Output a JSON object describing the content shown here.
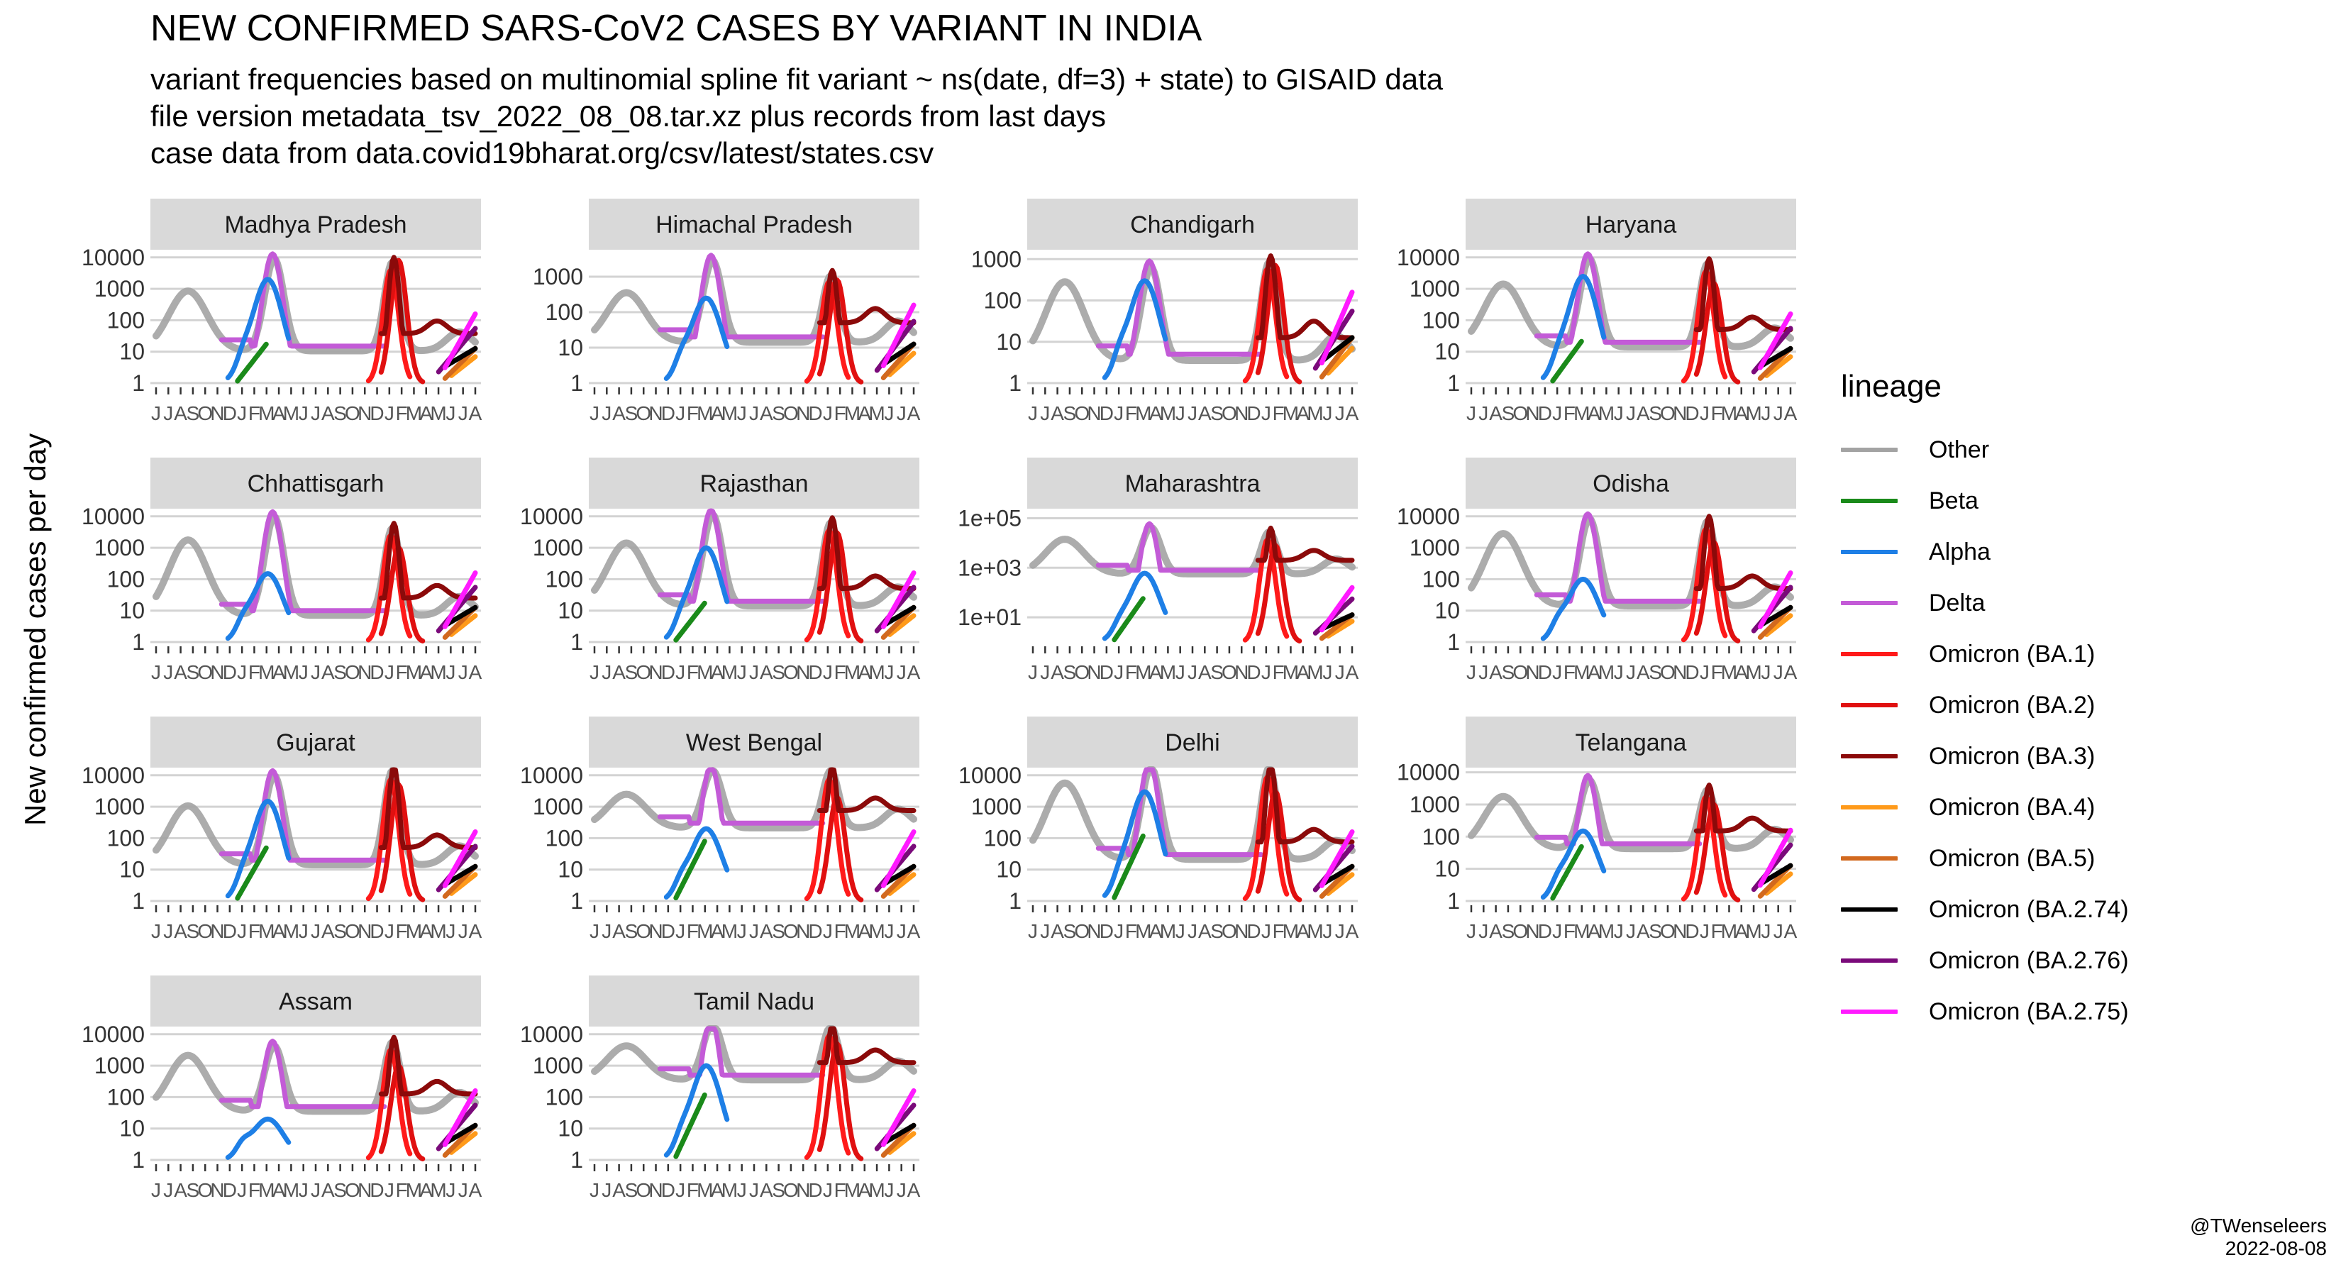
{
  "chart_data": {
    "type": "line",
    "title": "NEW CONFIRMED SARS-CoV2 CASES BY VARIANT IN INDIA",
    "subtitle": [
      "variant frequencies based on multinomial spline fit variant ~ ns(date, df=3) + state) to GISAID data",
      "file version metadata_tsv_2022_08_08.tar.xz plus records from last days",
      "case data from data.covid19bharat.org/csv/latest/states.csv"
    ],
    "ylabel": "New confirmed cases per day",
    "y_scale": "log10",
    "x_tick_labels": [
      "J",
      "J",
      "A",
      "S",
      "O",
      "N",
      "D",
      "J",
      "F",
      "M",
      "A",
      "M",
      "J",
      "J",
      "A",
      "S",
      "O",
      "N",
      "D",
      "J",
      "F",
      "M",
      "A",
      "M",
      "J",
      "J",
      "A"
    ],
    "legend": {
      "title": "lineage",
      "placement": "right",
      "entries": [
        {
          "name": "Other",
          "color": "#a3a3a3"
        },
        {
          "name": "Beta",
          "color": "#1a8a1a"
        },
        {
          "name": "Alpha",
          "color": "#1e7fe6"
        },
        {
          "name": "Delta",
          "color": "#c35bd7"
        },
        {
          "name": "Omicron (BA.1)",
          "color": "#ff1a1a"
        },
        {
          "name": "Omicron (BA.2)",
          "color": "#e01010"
        },
        {
          "name": "Omicron (BA.3)",
          "color": "#8b0a0a"
        },
        {
          "name": "Omicron (BA.4)",
          "color": "#ff9a1a"
        },
        {
          "name": "Omicron (BA.5)",
          "color": "#d2691e"
        },
        {
          "name": "Omicron (BA.2.74)",
          "color": "#000000"
        },
        {
          "name": "Omicron (BA.2.76)",
          "color": "#7a0a7a"
        },
        {
          "name": "Omicron (BA.2.75)",
          "color": "#ff1aff"
        }
      ]
    },
    "panels": [
      {
        "state": "Madhya Pradesh",
        "y_ticks": [
          "1",
          "10",
          "100",
          "1000",
          "10000"
        ],
        "y_tick_values": [
          1,
          10,
          100,
          1000,
          10000
        ],
        "y_range": [
          1,
          15000
        ],
        "peak_wave1": 1200,
        "peak_wave2": 13000,
        "peak_wave3": 10000,
        "trough": 15,
        "alpha_peak": 2000,
        "delta_peak": 13000,
        "beta_peak": 20,
        "ba2_peak": 8000
      },
      {
        "state": "Himachal Pradesh",
        "y_ticks": [
          "1",
          "10",
          "100",
          "1000"
        ],
        "y_tick_values": [
          1,
          10,
          100,
          1000
        ],
        "y_range": [
          1,
          5000
        ],
        "peak_wave1": 500,
        "peak_wave2": 4000,
        "peak_wave3": 1500,
        "trough": 20,
        "alpha_peak": 250,
        "delta_peak": 4000,
        "beta_peak": 0,
        "ba2_peak": 800
      },
      {
        "state": "Chandigarh",
        "y_ticks": [
          "1",
          "10",
          "100",
          "1000"
        ],
        "y_tick_values": [
          1,
          10,
          100,
          1000
        ],
        "y_range": [
          1,
          1500
        ],
        "peak_wave1": 400,
        "peak_wave2": 900,
        "peak_wave3": 1200,
        "trough": 5,
        "alpha_peak": 300,
        "delta_peak": 900,
        "beta_peak": 0,
        "ba2_peak": 700
      },
      {
        "state": "Haryana",
        "y_ticks": [
          "1",
          "10",
          "100",
          "1000",
          "10000"
        ],
        "y_tick_values": [
          1,
          10,
          100,
          1000,
          10000
        ],
        "y_range": [
          1,
          15000
        ],
        "peak_wave1": 2000,
        "peak_wave2": 13000,
        "peak_wave3": 9000,
        "trough": 20,
        "alpha_peak": 2500,
        "delta_peak": 13000,
        "beta_peak": 25,
        "ba2_peak": 1500
      },
      {
        "state": "Chhattisgarh",
        "y_ticks": [
          "1",
          "10",
          "100",
          "1000",
          "10000"
        ],
        "y_tick_values": [
          1,
          10,
          100,
          1000,
          10000
        ],
        "y_range": [
          1,
          15000
        ],
        "peak_wave1": 2500,
        "peak_wave2": 14000,
        "peak_wave3": 6000,
        "trough": 10,
        "alpha_peak": 150,
        "delta_peak": 14000,
        "beta_peak": 0,
        "ba2_peak": 1000
      },
      {
        "state": "Rajasthan",
        "y_ticks": [
          "1",
          "10",
          "100",
          "1000",
          "10000"
        ],
        "y_tick_values": [
          1,
          10,
          100,
          1000,
          10000
        ],
        "y_range": [
          1,
          15000
        ],
        "peak_wave1": 2000,
        "peak_wave2": 16000,
        "peak_wave3": 9000,
        "trough": 20,
        "alpha_peak": 1000,
        "delta_peak": 16000,
        "beta_peak": 20,
        "ba2_peak": 3000
      },
      {
        "state": "Maharashtra",
        "y_ticks": [
          "1e+01",
          "1e+03",
          "1e+05"
        ],
        "y_tick_values": [
          10,
          1000,
          100000
        ],
        "y_range": [
          1,
          200000
        ],
        "peak_wave1": 20000,
        "peak_wave2": 60000,
        "peak_wave3": 40000,
        "trough": 800,
        "alpha_peak": 600,
        "delta_peak": 60000,
        "beta_peak": 70,
        "ba2_peak": 8000
      },
      {
        "state": "Odisha",
        "y_ticks": [
          "1",
          "10",
          "100",
          "1000",
          "10000"
        ],
        "y_tick_values": [
          1,
          10,
          100,
          1000,
          10000
        ],
        "y_range": [
          1,
          15000
        ],
        "peak_wave1": 4000,
        "peak_wave2": 12000,
        "peak_wave3": 10000,
        "trough": 20,
        "alpha_peak": 100,
        "delta_peak": 12000,
        "beta_peak": 0,
        "ba2_peak": 1500
      },
      {
        "state": "Gujarat",
        "y_ticks": [
          "1",
          "10",
          "100",
          "1000",
          "10000"
        ],
        "y_tick_values": [
          1,
          10,
          100,
          1000,
          10000
        ],
        "y_range": [
          1,
          15000
        ],
        "peak_wave1": 1500,
        "peak_wave2": 14000,
        "peak_wave3": 20000,
        "trough": 20,
        "alpha_peak": 1500,
        "delta_peak": 14000,
        "beta_peak": 60,
        "ba2_peak": 5000
      },
      {
        "state": "West Bengal",
        "y_ticks": [
          "1",
          "10",
          "100",
          "1000",
          "10000"
        ],
        "y_tick_values": [
          1,
          10,
          100,
          1000,
          10000
        ],
        "y_range": [
          1,
          15000
        ],
        "peak_wave1": 3500,
        "peak_wave2": 20000,
        "peak_wave3": 20000,
        "trough": 300,
        "alpha_peak": 200,
        "delta_peak": 20000,
        "beta_peak": 100,
        "ba2_peak": 2000
      },
      {
        "state": "Delhi",
        "y_ticks": [
          "1",
          "10",
          "100",
          "1000",
          "10000"
        ],
        "y_tick_values": [
          1,
          10,
          100,
          1000,
          10000
        ],
        "y_range": [
          1,
          15000
        ],
        "peak_wave1": 8000,
        "peak_wave2": 26000,
        "peak_wave3": 25000,
        "trough": 30,
        "alpha_peak": 3000,
        "delta_peak": 26000,
        "beta_peak": 150,
        "ba2_peak": 3000
      },
      {
        "state": "Telangana",
        "y_ticks": [
          "1",
          "10",
          "100",
          "1000",
          "10000"
        ],
        "y_tick_values": [
          1,
          10,
          100,
          1000,
          10000
        ],
        "y_range": [
          1,
          12000
        ],
        "peak_wave1": 2500,
        "peak_wave2": 8000,
        "peak_wave3": 4000,
        "trough": 60,
        "alpha_peak": 150,
        "delta_peak": 8000,
        "beta_peak": 60,
        "ba2_peak": 1000
      },
      {
        "state": "Assam",
        "y_ticks": [
          "1",
          "10",
          "100",
          "1000",
          "10000"
        ],
        "y_tick_values": [
          1,
          10,
          100,
          1000,
          10000
        ],
        "y_range": [
          1,
          15000
        ],
        "peak_wave1": 3000,
        "peak_wave2": 6000,
        "peak_wave3": 8000,
        "trough": 50,
        "alpha_peak": 20,
        "delta_peak": 6000,
        "beta_peak": 0,
        "ba2_peak": 1000
      },
      {
        "state": "Tamil Nadu",
        "y_ticks": [
          "1",
          "10",
          "100",
          "1000",
          "10000"
        ],
        "y_tick_values": [
          1,
          10,
          100,
          1000,
          10000
        ],
        "y_range": [
          1,
          15000
        ],
        "peak_wave1": 6000,
        "peak_wave2": 30000,
        "peak_wave3": 25000,
        "trough": 500,
        "alpha_peak": 1000,
        "delta_peak": 30000,
        "beta_peak": 150,
        "ba2_peak": 5000
      }
    ],
    "grid": true
  },
  "credit": {
    "handle": "@TWenseleers",
    "date": "2022-08-08"
  }
}
